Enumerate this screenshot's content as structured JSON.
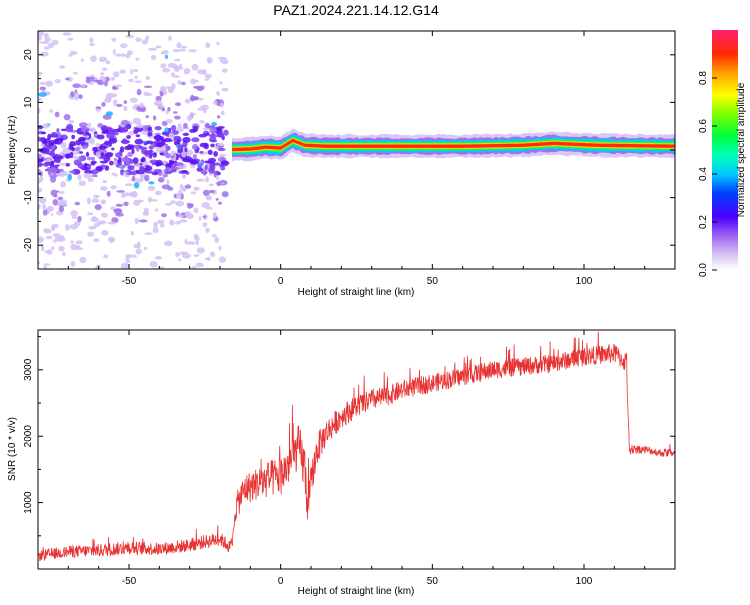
{
  "figure": {
    "title": "PAZ1.2024.221.14.12.G14"
  },
  "chart_data": [
    {
      "type": "heatmap",
      "name": "spectrogram",
      "xlabel": "Height of straight line (km)",
      "ylabel": "Frequency (Hz)",
      "xlim": [
        -80,
        130
      ],
      "ylim": [
        -25,
        25
      ],
      "xticks": [
        -50,
        0,
        50,
        100
      ],
      "yticks": [
        -20,
        -10,
        0,
        10,
        20
      ],
      "grid": false,
      "colorbar": {
        "label": "Normalized spectral amplitude",
        "range": [
          0,
          1
        ],
        "ticks": [
          "0.0",
          "0.2",
          "0.4",
          "0.6",
          "0.8"
        ],
        "colormap": "rainbow"
      },
      "ridge": [
        {
          "x": -16,
          "y": 0.1
        },
        {
          "x": -10,
          "y": 0.2
        },
        {
          "x": -5,
          "y": 0.6
        },
        {
          "x": 0,
          "y": 0.4
        },
        {
          "x": 4,
          "y": 2.0
        },
        {
          "x": 8,
          "y": 1.0
        },
        {
          "x": 15,
          "y": 0.8
        },
        {
          "x": 30,
          "y": 0.8
        },
        {
          "x": 60,
          "y": 0.8
        },
        {
          "x": 80,
          "y": 1.0
        },
        {
          "x": 90,
          "y": 1.4
        },
        {
          "x": 104,
          "y": 1.0
        },
        {
          "x": 130,
          "y": 0.8
        }
      ]
    },
    {
      "type": "line",
      "name": "snr",
      "xlabel": "Height of straight line (km)",
      "ylabel": "SNR (10 * v/v)",
      "xlim": [
        -80,
        130
      ],
      "ylim": [
        0,
        3600
      ],
      "xticks": [
        -50,
        0,
        50,
        100
      ],
      "yticks": [
        1000,
        2000,
        3000
      ],
      "grid": false,
      "color": "#e83232",
      "series": [
        {
          "x": [
            -80,
            -70,
            -60,
            -50,
            -40,
            -30,
            -20,
            -16,
            -15,
            -12,
            -8,
            -4,
            0,
            3,
            6,
            8,
            9,
            10,
            12,
            15,
            20,
            25,
            30,
            35,
            40,
            50,
            60,
            70,
            80,
            90,
            100,
            110,
            114,
            115,
            116,
            120,
            125,
            130
          ],
          "y": [
            200,
            260,
            280,
            320,
            300,
            360,
            460,
            300,
            900,
            1200,
            1280,
            1350,
            1400,
            1600,
            1850,
            1500,
            900,
            1300,
            1800,
            2050,
            2300,
            2450,
            2550,
            2600,
            2700,
            2800,
            2900,
            3000,
            3050,
            3100,
            3200,
            3250,
            3100,
            1700,
            1800,
            1800,
            1750,
            1750
          ],
          "noise": [
            80,
            90,
            100,
            100,
            100,
            100,
            110,
            100,
            200,
            230,
            250,
            280,
            300,
            320,
            330,
            400,
            300,
            250,
            250,
            200,
            180,
            170,
            160,
            150,
            150,
            140,
            140,
            140,
            140,
            140,
            140,
            150,
            150,
            80,
            70,
            60,
            60,
            60
          ]
        }
      ]
    }
  ]
}
